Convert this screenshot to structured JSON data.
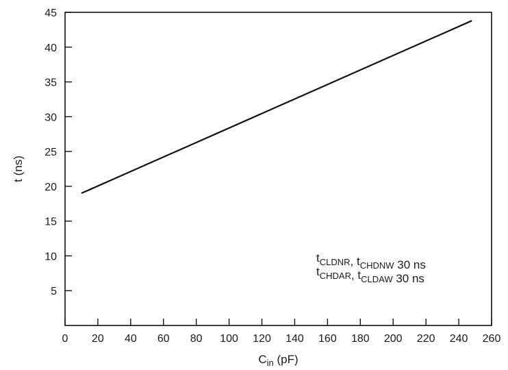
{
  "chart_data": {
    "type": "line",
    "title": "",
    "xlabel": {
      "main": "C",
      "sub": "in",
      "unit": "(pF)"
    },
    "ylabel": "t (ns)",
    "xlim": [
      0,
      260
    ],
    "ylim": [
      0,
      45
    ],
    "x_ticks": [
      0,
      20,
      40,
      60,
      80,
      100,
      120,
      140,
      160,
      180,
      200,
      220,
      240,
      260
    ],
    "y_ticks": [
      5,
      10,
      15,
      20,
      25,
      30,
      35,
      40,
      45
    ],
    "grid": false,
    "series": [
      {
        "x": [
          10,
          248
        ],
        "y": [
          19,
          43.8
        ],
        "color": "#111111"
      }
    ],
    "annotation": {
      "lines": [
        [
          {
            "t": "t",
            "s": "CLDNR"
          },
          {
            "t": ", t",
            "s": "CHDNW"
          },
          {
            "t": " 30 ns",
            "s": ""
          }
        ],
        [
          {
            "t": "t",
            "s": "CHDAR"
          },
          {
            "t": ", t",
            "s": "CLDAW"
          },
          {
            "t": " 30 ns",
            "s": ""
          }
        ]
      ]
    }
  }
}
